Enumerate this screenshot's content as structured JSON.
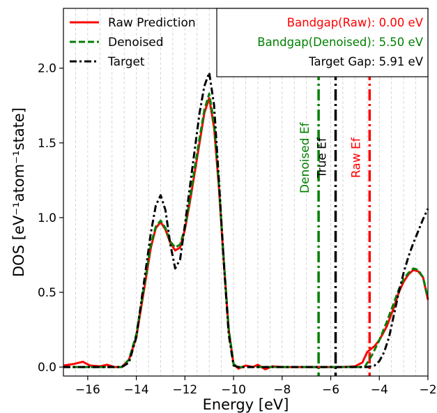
{
  "chart_data": {
    "type": "line",
    "xlabel": "Energy [eV]",
    "ylabel": "DOS [eV⁻¹atom⁻¹state]",
    "xlim": [
      -17,
      -2
    ],
    "ylim": [
      -0.06,
      2.4
    ],
    "x_ticks": [
      -16,
      -14,
      -12,
      -10,
      -8,
      -6,
      -4,
      -2
    ],
    "x_tick_labels": [
      "−16",
      "−14",
      "−12",
      "−10",
      "−8",
      "−6",
      "−4",
      "−2"
    ],
    "y_ticks": [
      0.0,
      0.5,
      1.0,
      1.5,
      2.0
    ],
    "y_tick_labels": [
      "0.0",
      "0.5",
      "1.0",
      "1.5",
      "2.0"
    ],
    "grid": "vertical minor dashed",
    "legend_position": "top-left",
    "series": [
      {
        "name": "Raw Prediction",
        "color": "#ff0000",
        "style": "solid",
        "x": [
          -17,
          -16.6,
          -16.2,
          -15.9,
          -15.5,
          -15.2,
          -14.9,
          -14.6,
          -14.3,
          -14.0,
          -13.7,
          -13.4,
          -13.2,
          -13.0,
          -12.8,
          -12.6,
          -12.4,
          -12.2,
          -12.0,
          -11.8,
          -11.6,
          -11.4,
          -11.2,
          -11.0,
          -10.8,
          -10.6,
          -10.4,
          -10.2,
          -10.0,
          -9.8,
          -9.5,
          -9.2,
          -9.0,
          -8.7,
          -8.4,
          -8.0,
          -7.5,
          -7.0,
          -6.5,
          -6.0,
          -5.5,
          -5.0,
          -4.7,
          -4.5,
          -4.2,
          -4.0,
          -3.7,
          -3.4,
          -3.2,
          -3.0,
          -2.8,
          -2.6,
          -2.4,
          -2.2,
          -2.0
        ],
        "y": [
          0.01,
          0.02,
          0.035,
          0.01,
          0.005,
          0.015,
          0.0,
          0.0,
          0.05,
          0.2,
          0.5,
          0.8,
          0.93,
          0.97,
          0.92,
          0.83,
          0.78,
          0.8,
          0.92,
          1.1,
          1.3,
          1.5,
          1.7,
          1.8,
          1.6,
          1.2,
          0.7,
          0.25,
          0.02,
          -0.01,
          0.01,
          0.0,
          0.015,
          -0.015,
          0.005,
          0.0,
          0.0,
          0.0,
          0.0,
          0.0,
          0.0,
          0.005,
          0.03,
          0.1,
          0.14,
          0.18,
          0.27,
          0.4,
          0.5,
          0.57,
          0.62,
          0.65,
          0.64,
          0.6,
          0.45
        ]
      },
      {
        "name": "Denoised",
        "color": "#008000",
        "style": "dashed",
        "x": [
          -17,
          -16.5,
          -16.0,
          -15.5,
          -15.0,
          -14.6,
          -14.3,
          -14.0,
          -13.7,
          -13.4,
          -13.2,
          -13.0,
          -12.8,
          -12.6,
          -12.4,
          -12.2,
          -12.0,
          -11.8,
          -11.6,
          -11.4,
          -11.2,
          -11.0,
          -10.8,
          -10.6,
          -10.4,
          -10.2,
          -10.0,
          -9.8,
          -9.5,
          -9.0,
          -8.5,
          -8.0,
          -7.0,
          -6.0,
          -5.0,
          -4.6,
          -4.3,
          -4.0,
          -3.7,
          -3.4,
          -3.2,
          -3.0,
          -2.8,
          -2.6,
          -2.4,
          -2.2,
          -2.0
        ],
        "y": [
          0.0,
          0.0,
          0.0,
          0.0,
          0.0,
          0.0,
          0.05,
          0.22,
          0.52,
          0.82,
          0.94,
          0.98,
          0.93,
          0.84,
          0.8,
          0.82,
          0.93,
          1.12,
          1.33,
          1.53,
          1.72,
          1.83,
          1.63,
          1.22,
          0.72,
          0.26,
          0.02,
          0.0,
          0.0,
          0.0,
          0.0,
          0.0,
          0.0,
          0.0,
          0.0,
          0.0,
          0.08,
          0.18,
          0.3,
          0.43,
          0.52,
          0.59,
          0.63,
          0.66,
          0.65,
          0.6,
          0.46
        ]
      },
      {
        "name": "Target",
        "color": "#000000",
        "style": "dashdot",
        "x": [
          -17,
          -16.0,
          -15.0,
          -14.6,
          -14.3,
          -14.0,
          -13.7,
          -13.4,
          -13.2,
          -13.0,
          -12.8,
          -12.6,
          -12.4,
          -12.2,
          -12.0,
          -11.8,
          -11.6,
          -11.4,
          -11.2,
          -11.0,
          -10.8,
          -10.6,
          -10.4,
          -10.2,
          -10.0,
          -9.8,
          -9.0,
          -8.0,
          -7.0,
          -6.0,
          -5.0,
          -4.5,
          -4.2,
          -4.0,
          -3.8,
          -3.6,
          -3.4,
          -3.2,
          -3.0,
          -2.8,
          -2.6,
          -2.4,
          -2.2,
          -2.0
        ],
        "y": [
          0.0,
          0.0,
          0.0,
          0.0,
          0.03,
          0.2,
          0.55,
          0.9,
          1.08,
          1.15,
          1.05,
          0.82,
          0.66,
          0.72,
          0.95,
          1.2,
          1.45,
          1.7,
          1.88,
          1.97,
          1.75,
          1.25,
          0.7,
          0.22,
          0.01,
          0.0,
          0.0,
          0.0,
          0.0,
          0.0,
          0.0,
          0.0,
          0.01,
          0.04,
          0.1,
          0.2,
          0.35,
          0.5,
          0.63,
          0.74,
          0.83,
          0.91,
          0.99,
          1.06
        ]
      }
    ],
    "vertical_lines": [
      {
        "label": "Denoised Ef",
        "x": -6.5,
        "color": "#008000"
      },
      {
        "label": "True Ef",
        "x": -5.8,
        "color": "#000000"
      },
      {
        "label": "Raw Ef",
        "x": -4.4,
        "color": "#ff0000"
      }
    ],
    "info_box": {
      "position": "top-right",
      "lines": [
        {
          "text": "Bandgap(Raw): 0.00 eV",
          "color": "#ff0000"
        },
        {
          "text": "Bandgap(Denoised): 5.50 eV",
          "color": "#008000"
        },
        {
          "text": "Target Gap: 5.91 eV",
          "color": "#000000"
        }
      ]
    }
  }
}
